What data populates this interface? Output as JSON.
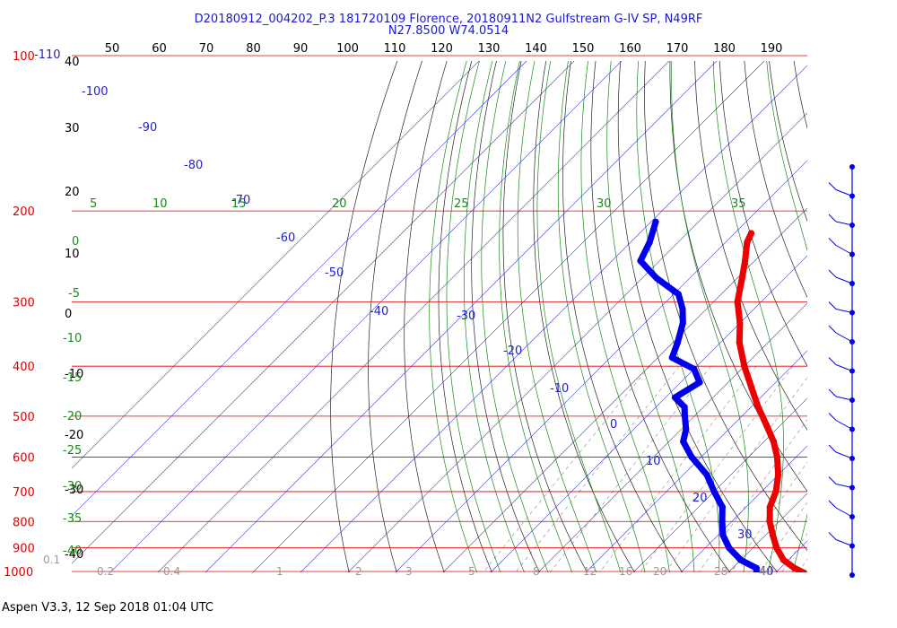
{
  "header": {
    "title_line1": "D20180912_004202_P.3 181720109 Florence, 20180911N2 Gulfstream G-IV SP, N49RF",
    "title_line2": "N27.8500 W74.0514"
  },
  "footer": {
    "text": "Aspen V3.3, 12 Sep 2018  01:04 UTC"
  },
  "chart_data": {
    "type": "skew-t",
    "pressure_axis": {
      "unit": "hPa",
      "levels": [
        100,
        200,
        300,
        400,
        500,
        600,
        700,
        800,
        900,
        1000
      ],
      "labels": [
        "100",
        "200",
        "300",
        "400",
        "500",
        "600",
        "700",
        "800",
        "900",
        "1000"
      ],
      "range": [
        100,
        1000
      ],
      "scale": "log"
    },
    "top_temperature_axis": {
      "labels": [
        "50",
        "60",
        "70",
        "80",
        "90",
        "100",
        "110",
        "120",
        "130",
        "140",
        "150",
        "160",
        "170",
        "180",
        "190"
      ]
    },
    "left_height_labels": [
      "40",
      "30",
      "20",
      "10",
      "0",
      "-10",
      "-20",
      "-30",
      "-40"
    ],
    "isotherm_labels": [
      "-110",
      "-100",
      "-90",
      "-80",
      "-70",
      "-60",
      "-50",
      "-40",
      "-30",
      "-20",
      "-10",
      "0",
      "10",
      "20",
      "30",
      "40"
    ],
    "mixing_ratio_labels": [
      "0.1",
      "0.2",
      "0.4",
      "1",
      "2",
      "3",
      "5",
      "8",
      "12",
      "16",
      "20",
      "28",
      "40"
    ],
    "theta_e_top_labels": [
      "5",
      "10",
      "15",
      "20",
      "25",
      "30",
      "35"
    ],
    "theta_e_left_labels": [
      "0",
      "-5",
      "-10",
      "-15",
      "-20",
      "-25",
      "-30",
      "-35",
      "-40"
    ],
    "series": [
      {
        "name": "",
        "variable": "temperature",
        "color": "#ee0000",
        "unit": "degC",
        "points": [
          [
            221,
            -56.5
          ],
          [
            230,
            -55.5
          ],
          [
            250,
            -52
          ],
          [
            270,
            -49
          ],
          [
            300,
            -45
          ],
          [
            330,
            -40
          ],
          [
            360,
            -36
          ],
          [
            400,
            -30
          ],
          [
            440,
            -24
          ],
          [
            480,
            -18.5
          ],
          [
            520,
            -13
          ],
          [
            560,
            -8
          ],
          [
            600,
            -4
          ],
          [
            650,
            0
          ],
          [
            700,
            3
          ],
          [
            750,
            5
          ],
          [
            800,
            8
          ],
          [
            850,
            11.5
          ],
          [
            900,
            15
          ],
          [
            950,
            19
          ],
          [
            985,
            23
          ],
          [
            1006,
            26
          ]
        ]
      },
      {
        "name": "",
        "variable": "dewpoint",
        "color": "#0000ee",
        "unit": "degC",
        "points": [
          [
            210,
            -79
          ],
          [
            230,
            -76
          ],
          [
            250,
            -74
          ],
          [
            270,
            -67
          ],
          [
            290,
            -59
          ],
          [
            310,
            -55
          ],
          [
            330,
            -52
          ],
          [
            360,
            -49
          ],
          [
            385,
            -47
          ],
          [
            405,
            -40
          ],
          [
            430,
            -36
          ],
          [
            460,
            -38
          ],
          [
            480,
            -34
          ],
          [
            500,
            -32
          ],
          [
            530,
            -29
          ],
          [
            560,
            -27
          ],
          [
            600,
            -22
          ],
          [
            650,
            -15
          ],
          [
            700,
            -10
          ],
          [
            750,
            -5
          ],
          [
            800,
            -2
          ],
          [
            850,
            1
          ],
          [
            900,
            5
          ],
          [
            950,
            10
          ],
          [
            985,
            15
          ],
          [
            1006,
            16
          ]
        ]
      }
    ],
    "wind_barbs": {
      "color": "#0000ee",
      "count": 15
    }
  }
}
